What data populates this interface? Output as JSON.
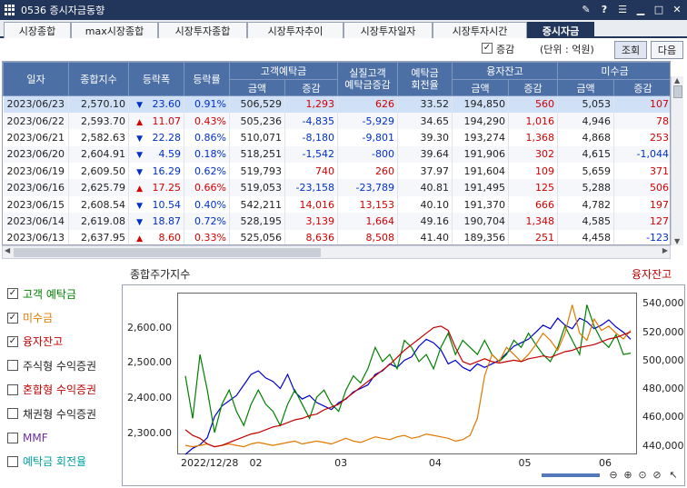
{
  "window": {
    "title": "0536 증시자금동향"
  },
  "tabs": [
    "시장종합",
    "max시장종합",
    "시장투자종합",
    "시장투자추이",
    "시장투자일자",
    "시장투자시간",
    "증시자금"
  ],
  "active_tab": "증시자금",
  "options": {
    "change_label": "증감",
    "change_checked": true,
    "unit_label": "(단위 : 억원)",
    "query_button": "조회",
    "next_button": "다음"
  },
  "table": {
    "headers": {
      "date": "일자",
      "index": "종합지수",
      "change": "등락폭",
      "rate": "등락률",
      "deposit": "고객예탁금",
      "real_deposit": "실질고객\n예탁금증감",
      "turnover": "예탁금\n회전율",
      "credit": "융자잔고",
      "receivable": "미수금",
      "amount": "금액",
      "delta": "증감"
    },
    "rows": [
      {
        "date": "2023/06/23",
        "index": "2,570.10",
        "dir": "down",
        "change": "23.60",
        "rate": "0.91%",
        "dep": "506,529",
        "dep_d": "1,293",
        "real": "626",
        "turn": "33.52",
        "cred": "194,850",
        "cred_d": "560",
        "recv": "5,053",
        "recv_d": "107"
      },
      {
        "date": "2023/06/22",
        "index": "2,593.70",
        "dir": "up",
        "change": "11.07",
        "rate": "0.43%",
        "dep": "505,236",
        "dep_d": "-4,835",
        "real": "-5,929",
        "turn": "34.65",
        "cred": "194,290",
        "cred_d": "1,016",
        "recv": "4,946",
        "recv_d": "78"
      },
      {
        "date": "2023/06/21",
        "index": "2,582.63",
        "dir": "down",
        "change": "22.28",
        "rate": "0.86%",
        "dep": "510,071",
        "dep_d": "-8,180",
        "real": "-9,801",
        "turn": "39.30",
        "cred": "193,274",
        "cred_d": "1,368",
        "recv": "4,868",
        "recv_d": "253"
      },
      {
        "date": "2023/06/20",
        "index": "2,604.91",
        "dir": "down",
        "change": "4.59",
        "rate": "0.18%",
        "dep": "518,251",
        "dep_d": "-1,542",
        "real": "-800",
        "turn": "39.64",
        "cred": "191,906",
        "cred_d": "302",
        "recv": "4,615",
        "recv_d": "-1,044"
      },
      {
        "date": "2023/06/19",
        "index": "2,609.50",
        "dir": "down",
        "change": "16.29",
        "rate": "0.62%",
        "dep": "519,793",
        "dep_d": "740",
        "real": "260",
        "turn": "37.97",
        "cred": "191,604",
        "cred_d": "109",
        "recv": "5,659",
        "recv_d": "371"
      },
      {
        "date": "2023/06/16",
        "index": "2,625.79",
        "dir": "up",
        "change": "17.25",
        "rate": "0.66%",
        "dep": "519,053",
        "dep_d": "-23,158",
        "real": "-23,789",
        "turn": "40.81",
        "cred": "191,495",
        "cred_d": "125",
        "recv": "5,288",
        "recv_d": "506"
      },
      {
        "date": "2023/06/15",
        "index": "2,608.54",
        "dir": "down",
        "change": "10.54",
        "rate": "0.40%",
        "dep": "542,211",
        "dep_d": "14,016",
        "real": "13,153",
        "turn": "40.10",
        "cred": "191,370",
        "cred_d": "666",
        "recv": "4,782",
        "recv_d": "197"
      },
      {
        "date": "2023/06/14",
        "index": "2,619.08",
        "dir": "down",
        "change": "18.87",
        "rate": "0.72%",
        "dep": "528,195",
        "dep_d": "3,139",
        "real": "1,664",
        "turn": "49.16",
        "cred": "190,704",
        "cred_d": "1,348",
        "recv": "4,585",
        "recv_d": "127"
      },
      {
        "date": "2023/06/13",
        "index": "2,637.95",
        "dir": "up",
        "change": "8.60",
        "rate": "0.33%",
        "dep": "525,056",
        "dep_d": "8,636",
        "real": "8,508",
        "turn": "41.40",
        "cred": "189,356",
        "cred_d": "251",
        "recv": "4,458",
        "recv_d": "-123"
      }
    ]
  },
  "checkboxes": [
    {
      "label": "고객 예탁금",
      "checked": true,
      "color": "#008000"
    },
    {
      "label": "미수금",
      "checked": true,
      "color": "#e07800"
    },
    {
      "label": "융자잔고",
      "checked": true,
      "color": "#c00000"
    },
    {
      "label": "주식형 수익증권",
      "checked": false,
      "color": "#222222"
    },
    {
      "label": "혼합형 수익증권",
      "checked": false,
      "color": "#c00000"
    },
    {
      "label": "채권형 수익증권",
      "checked": false,
      "color": "#222222"
    },
    {
      "label": "MMF",
      "checked": false,
      "color": "#7030a0"
    },
    {
      "label": "예탁금 회전율",
      "checked": false,
      "color": "#00a0a0"
    }
  ],
  "chart_data": {
    "type": "line",
    "title": "종합주가지수",
    "right_title": "융자잔고",
    "legend": [
      {
        "name": "종합지수",
        "color": "#0000cc"
      },
      {
        "name": "고객예탁금",
        "color": "#008000"
      },
      {
        "name": "미수금",
        "color": "#e07800"
      },
      {
        "name": "융자잔고",
        "color": "#c00000"
      }
    ],
    "y_left_ticks": [
      "2,600.00",
      "2,500.00",
      "2,400.00",
      "2,300.00"
    ],
    "y_left_range": [
      2240,
      2700
    ],
    "y_right_ticks": [
      "540,000",
      "520,000",
      "500,000",
      "480,000",
      "460,000",
      "440,000"
    ],
    "y_right_range": [
      434000,
      548000
    ],
    "x_ticks": [
      "2022/12/28",
      "02",
      "03",
      "04",
      "05",
      "06"
    ],
    "x_tick_pos": [
      0,
      0.165,
      0.35,
      0.555,
      0.75,
      0.925
    ],
    "series": [
      {
        "name": "종합지수",
        "color": "#0000cc",
        "values": [
          2236,
          2260,
          2270,
          2290,
          2350,
          2380,
          2395,
          2410,
          2440,
          2470,
          2480,
          2460,
          2450,
          2430,
          2470,
          2420,
          2400,
          2410,
          2390,
          2380,
          2370,
          2390,
          2400,
          2420,
          2430,
          2440,
          2470,
          2480,
          2500,
          2490,
          2510,
          2520,
          2550,
          2570,
          2560,
          2540,
          2500,
          2510,
          2490,
          2480,
          2500,
          2490,
          2500,
          2510,
          2530,
          2550,
          2560,
          2570,
          2590,
          2610,
          2600,
          2630,
          2610,
          2600,
          2630,
          2620,
          2600,
          2610,
          2625,
          2605,
          2590,
          2570
        ]
      },
      {
        "name": "고객예탁금",
        "color": "#008000",
        "values": [
          490000,
          460000,
          505000,
          480000,
          450000,
          470000,
          480000,
          465000,
          455000,
          470000,
          480000,
          470000,
          465000,
          455000,
          470000,
          480000,
          470000,
          460000,
          475000,
          480000,
          470000,
          465000,
          480000,
          490000,
          485000,
          495000,
          510000,
          500000,
          505000,
          495000,
          515000,
          510000,
          500000,
          505000,
          495000,
          510000,
          520000,
          505000,
          515000,
          510000,
          505000,
          515000,
          505000,
          500000,
          505000,
          515000,
          510000,
          520000,
          512000,
          505000,
          500000,
          510000,
          525000,
          515000,
          505000,
          540000,
          525000,
          515000,
          510000,
          519000,
          505000,
          506000
        ]
      },
      {
        "name": "미수금",
        "color": "#e07800",
        "values": [
          441000,
          440000,
          441000,
          442000,
          440000,
          441000,
          442000,
          441000,
          440000,
          442000,
          443000,
          442000,
          441000,
          442000,
          443000,
          444000,
          442000,
          443000,
          444000,
          443000,
          442000,
          444000,
          446000,
          444000,
          443000,
          445000,
          447000,
          446000,
          445000,
          447000,
          448000,
          446000,
          447000,
          449000,
          448000,
          447000,
          446000,
          444000,
          445000,
          448000,
          460000,
          490000,
          505000,
          500000,
          510000,
          505000,
          500000,
          505000,
          512000,
          520000,
          515000,
          508000,
          520000,
          540000,
          520000,
          515000,
          530000,
          522000,
          525000,
          520000,
          516000,
          522000
        ]
      },
      {
        "name": "융자잔고",
        "color": "#c00000",
        "values": [
          452000,
          448000,
          446000,
          442000,
          440000,
          441000,
          443000,
          445000,
          447000,
          449000,
          450000,
          452000,
          454000,
          455000,
          457000,
          459000,
          460000,
          462000,
          463000,
          466000,
          468000,
          470000,
          474000,
          478000,
          482000,
          486000,
          490000,
          494000,
          498000,
          503000,
          508000,
          512000,
          516000,
          520000,
          524000,
          525000,
          522000,
          510000,
          500000,
          498000,
          500000,
          502000,
          500000,
          499000,
          500000,
          501000,
          500000,
          502000,
          503000,
          504000,
          503000,
          505000,
          507000,
          508000,
          510000,
          511000,
          512000,
          514000,
          516000,
          517000,
          519000,
          521000
        ]
      }
    ]
  }
}
